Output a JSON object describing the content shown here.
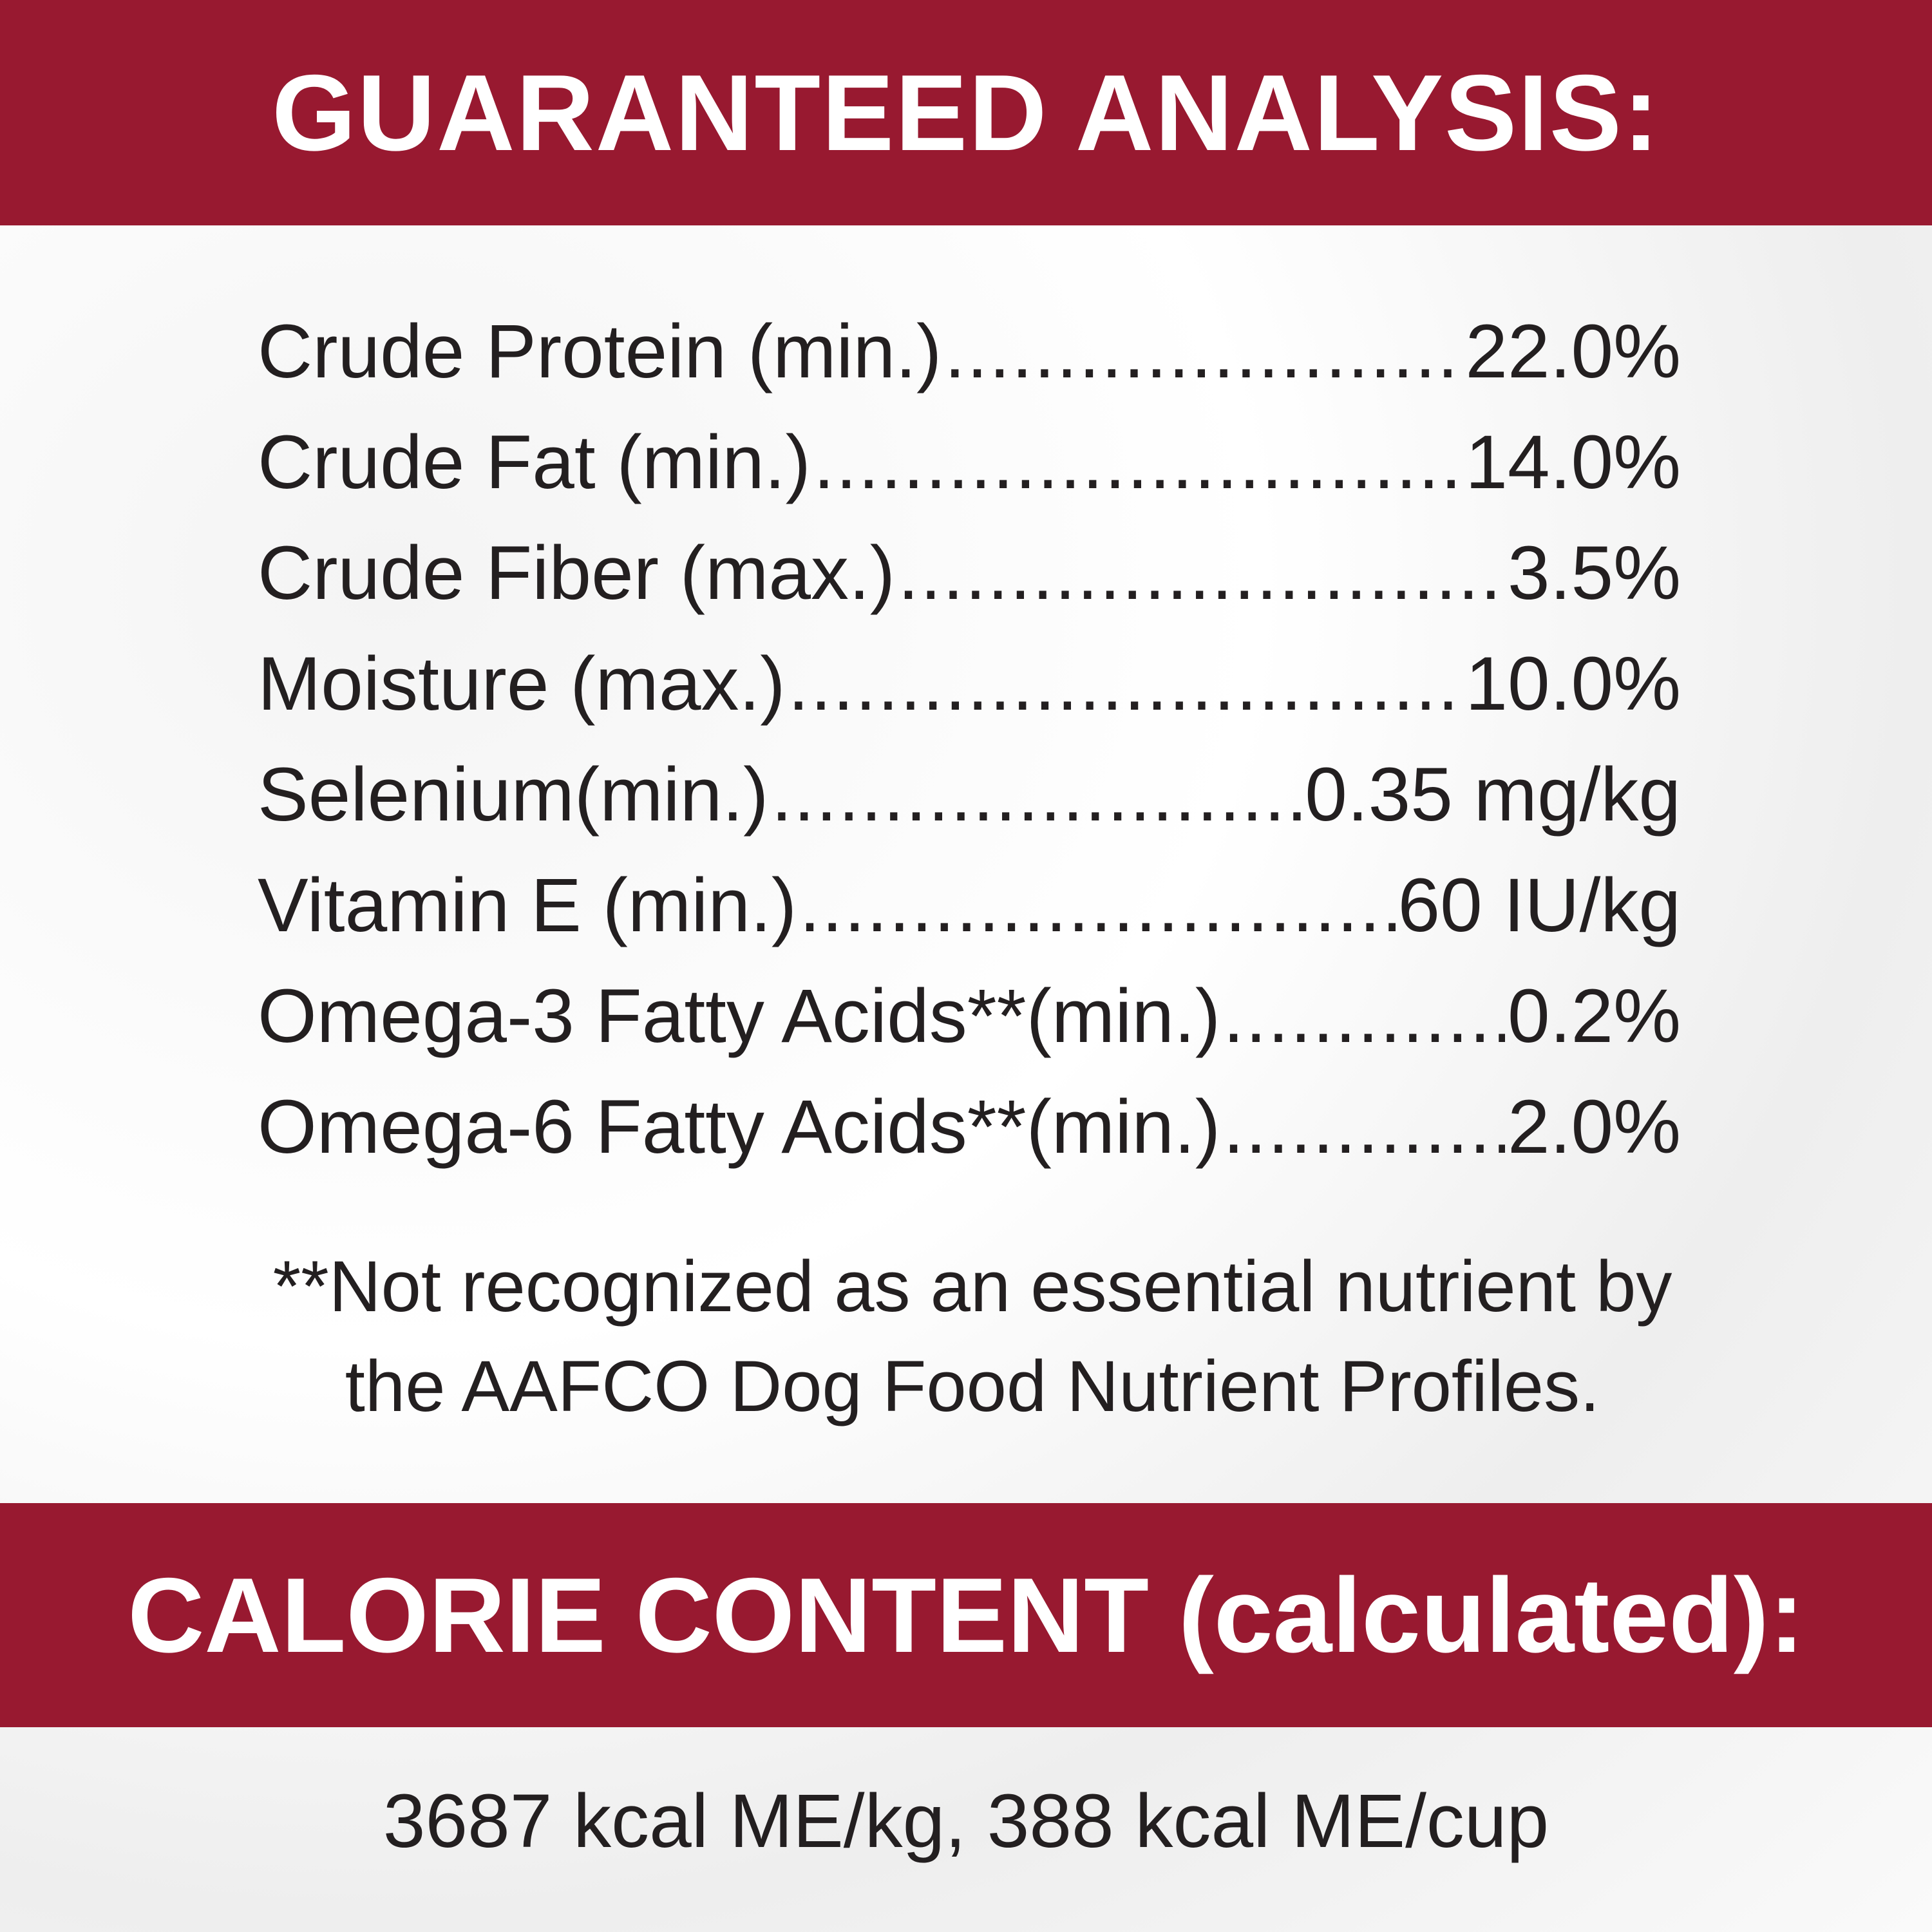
{
  "colors": {
    "band": "#981930",
    "text": "#231f20"
  },
  "guaranteed_analysis": {
    "title": "GUARANTEED ANALYSIS:",
    "rows": [
      {
        "label": "Crude Protein (min.)",
        "value": "22.0%"
      },
      {
        "label": "Crude Fat (min.)",
        "value": "14.0%"
      },
      {
        "label": "Crude Fiber (max.)",
        "value": "3.5%"
      },
      {
        "label": "Moisture (max.)",
        "value": "10.0%"
      },
      {
        "label": "Selenium(min.)",
        "value": "0.35 mg/kg"
      },
      {
        "label": "Vitamin E (min.)",
        "value": "60 IU/kg"
      },
      {
        "label": "Omega-3 Fatty Acids**(min.)",
        "value": "0.2%"
      },
      {
        "label": "Omega-6 Fatty Acids**(min.)",
        "value": "2.0%"
      }
    ],
    "footnote_line1": "**Not recognized as an essential nutrient by",
    "footnote_line2": "the AAFCO Dog Food Nutrient Profiles."
  },
  "calorie_content": {
    "title": "CALORIE CONTENT (calculated):",
    "value": "3687 kcal ME/kg, 388 kcal ME/cup"
  }
}
